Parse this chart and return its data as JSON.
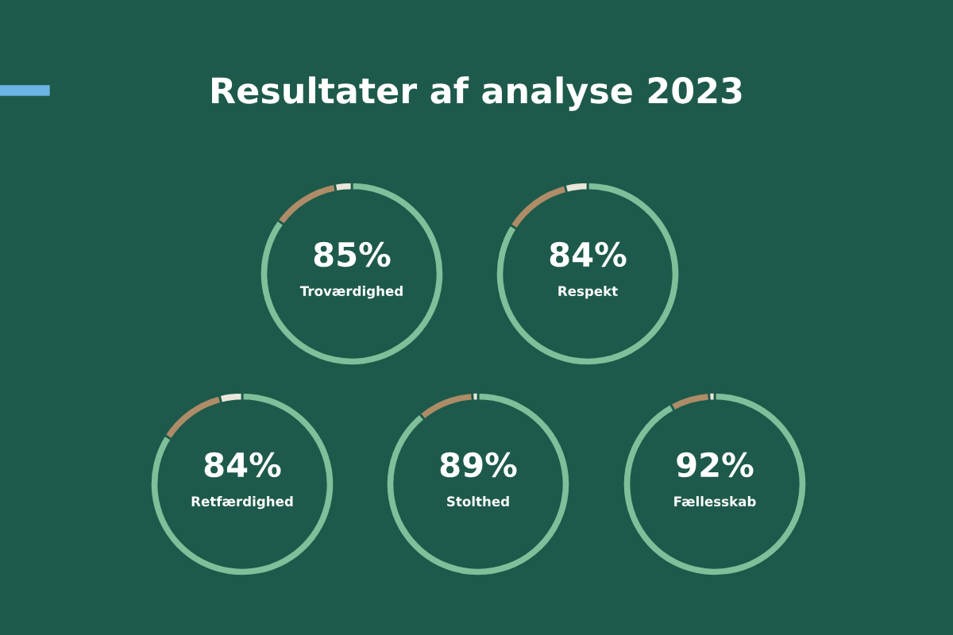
{
  "chart_data": [
    {
      "type": "other",
      "title": "Resultater af analyse 2023"
    },
    {
      "type": "donut",
      "title": "Troværdighed",
      "categories": [
        null,
        null,
        null
      ],
      "values": [
        85,
        12,
        3
      ],
      "colors": [
        "#7fbf9a",
        "#ad8c67",
        "#ebe6da"
      ],
      "value_labels": [
        "85%",
        null,
        null
      ]
    },
    {
      "type": "donut",
      "title": "Respekt",
      "categories": [
        null,
        null,
        null
      ],
      "values": [
        84,
        12,
        4
      ],
      "colors": [
        "#7fbf9a",
        "#ad8c67",
        "#ebe6da"
      ],
      "value_labels": [
        "84%",
        null,
        null
      ]
    },
    {
      "type": "donut",
      "title": "Retfærdighed",
      "categories": [
        null,
        null,
        null
      ],
      "values": [
        84,
        12,
        4
      ],
      "colors": [
        "#7fbf9a",
        "#ad8c67",
        "#ebe6da"
      ],
      "value_labels": [
        "84%",
        null,
        null
      ]
    },
    {
      "type": "donut",
      "title": "Stolthed",
      "categories": [
        null,
        null,
        null
      ],
      "values": [
        89,
        10,
        1
      ],
      "colors": [
        "#7fbf9a",
        "#ad8c67",
        "#ebe6da"
      ],
      "value_labels": [
        "89%",
        null,
        null
      ]
    },
    {
      "type": "donut",
      "title": "Fællesskab",
      "categories": [
        null,
        null,
        null
      ],
      "values": [
        92,
        7,
        1
      ],
      "colors": [
        "#7fbf9a",
        "#ad8c67",
        "#ebe6da"
      ],
      "value_labels": [
        "92%",
        null,
        null
      ]
    }
  ]
}
